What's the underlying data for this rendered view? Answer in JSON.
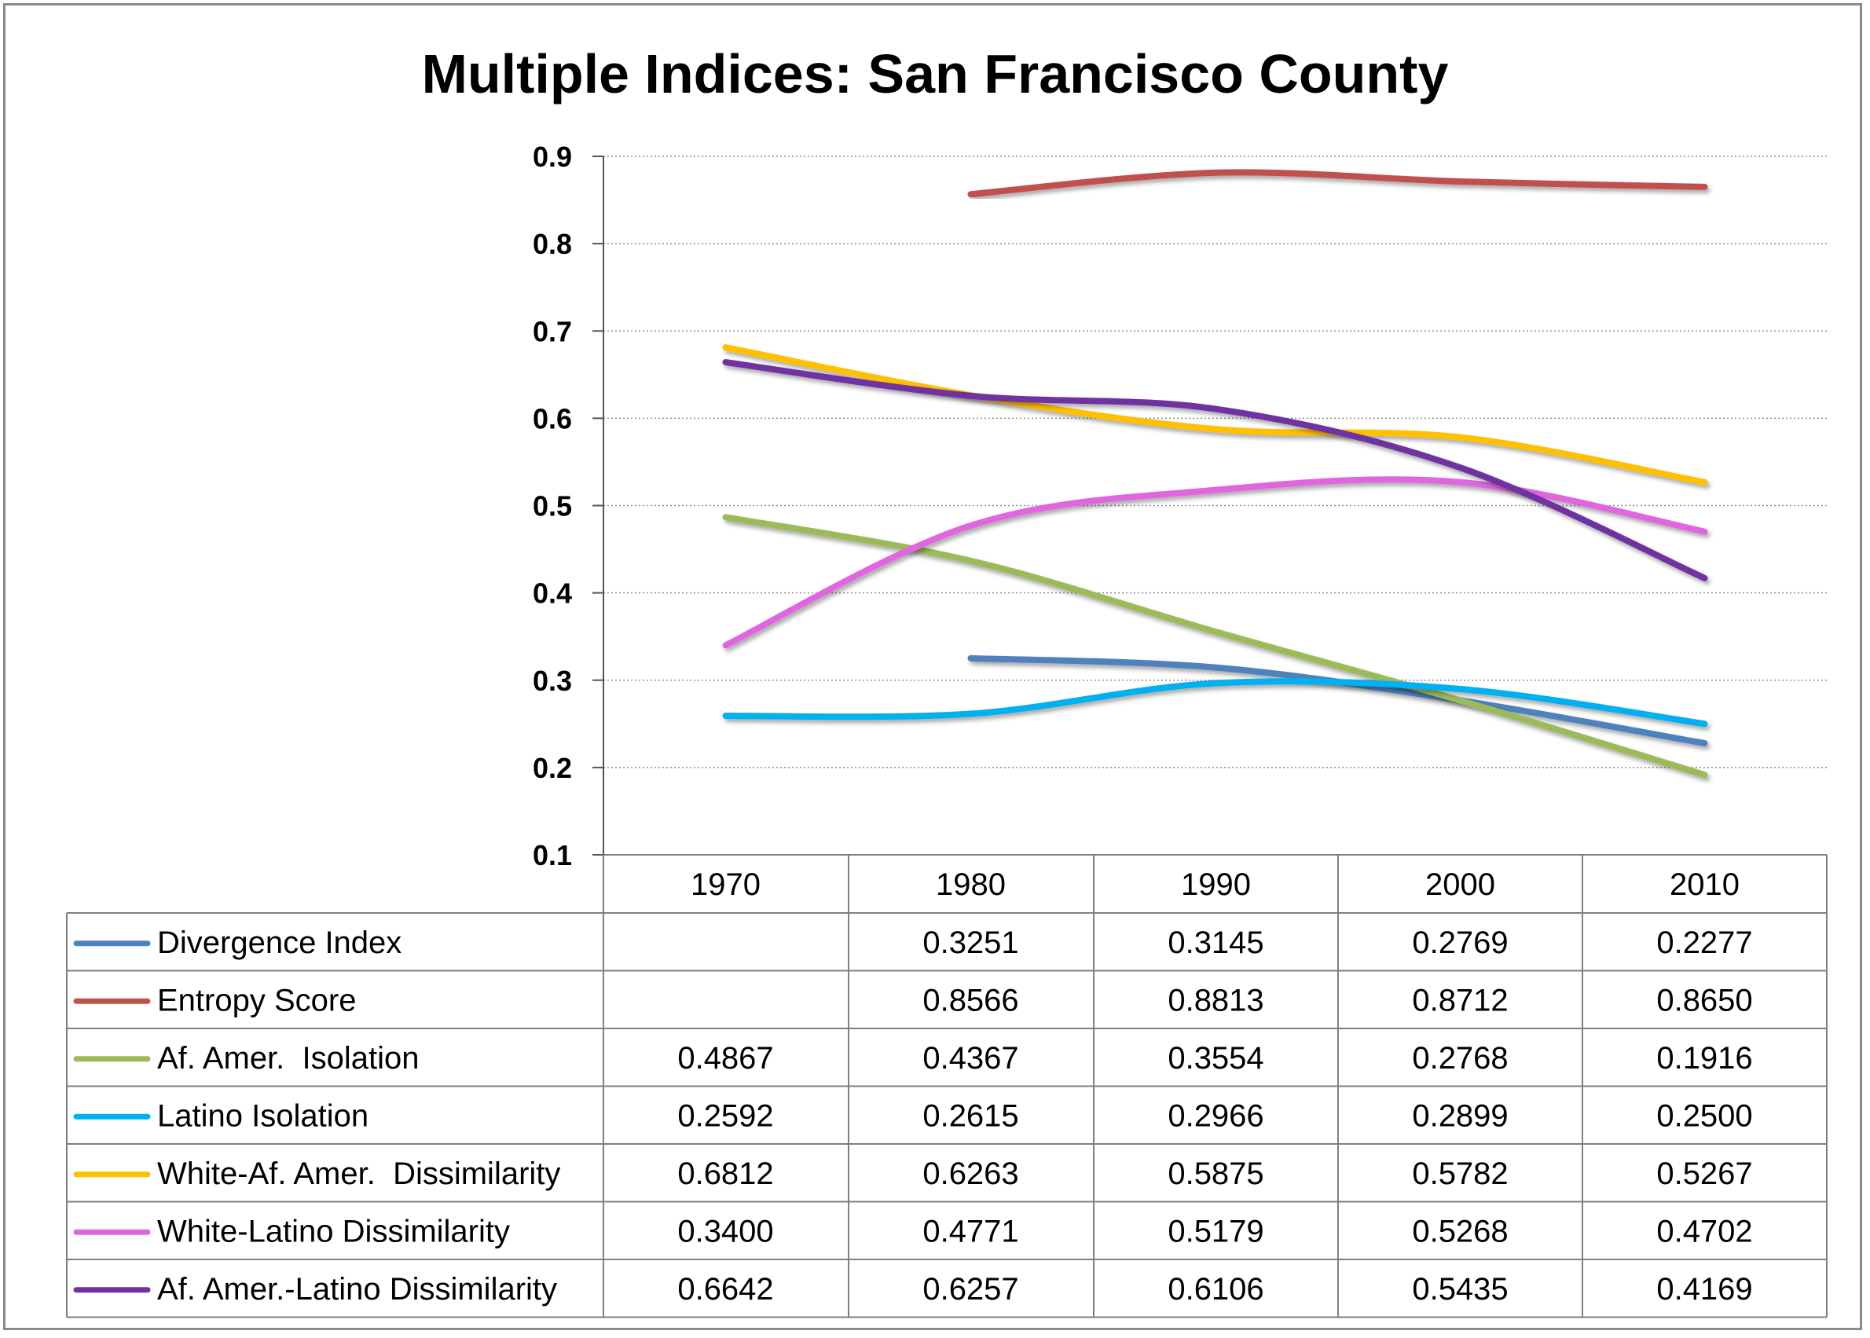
{
  "chart_data": {
    "type": "line",
    "title": "Multiple Indices: San Francisco County",
    "xlabel": "",
    "ylabel": "",
    "categories": [
      "1970",
      "1980",
      "1990",
      "2000",
      "2010"
    ],
    "ylim": [
      0.1,
      0.9
    ],
    "yticks": [
      "0.9",
      "0.8",
      "0.7",
      "0.6",
      "0.5",
      "0.4",
      "0.3",
      "0.2",
      "0.1"
    ],
    "grid": "horizontal dotted",
    "legend": "data table below chart",
    "series": [
      {
        "name": "Divergence Index",
        "color": "#4f81bd",
        "values": [
          null,
          0.3251,
          0.3145,
          0.2769,
          0.2277
        ],
        "labels": [
          "",
          "0.3251",
          "0.3145",
          "0.2769",
          "0.2277"
        ]
      },
      {
        "name": "Entropy Score",
        "color": "#c0504d",
        "values": [
          null,
          0.8566,
          0.8813,
          0.8712,
          0.865
        ],
        "labels": [
          "",
          "0.8566",
          "0.8813",
          "0.8712",
          "0.8650"
        ]
      },
      {
        "name": "Af. Amer.  Isolation",
        "color": "#9bbb59",
        "values": [
          0.4867,
          0.4367,
          0.3554,
          0.2768,
          0.1916
        ],
        "labels": [
          "0.4867",
          "0.4367",
          "0.3554",
          "0.2768",
          "0.1916"
        ]
      },
      {
        "name": "Latino Isolation",
        "color": "#00b0f0",
        "values": [
          0.2592,
          0.2615,
          0.2966,
          0.2899,
          0.25
        ],
        "labels": [
          "0.2592",
          "0.2615",
          "0.2966",
          "0.2899",
          "0.2500"
        ]
      },
      {
        "name": "White-Af. Amer.  Dissimilarity",
        "color": "#ffc000",
        "values": [
          0.6812,
          0.6263,
          0.5875,
          0.5782,
          0.5267
        ],
        "labels": [
          "0.6812",
          "0.6263",
          "0.5875",
          "0.5782",
          "0.5267"
        ]
      },
      {
        "name": "White-Latino Dissimilarity",
        "color": "#e066e0",
        "values": [
          0.34,
          0.4771,
          0.5179,
          0.5268,
          0.4702
        ],
        "labels": [
          "0.3400",
          "0.4771",
          "0.5179",
          "0.5268",
          "0.4702"
        ]
      },
      {
        "name": "Af. Amer.-Latino Dissimilarity",
        "color": "#7030a0",
        "values": [
          0.6642,
          0.6257,
          0.6106,
          0.5435,
          0.4169
        ],
        "labels": [
          "0.6642",
          "0.6257",
          "0.6106",
          "0.5435",
          "0.4169"
        ]
      }
    ]
  }
}
